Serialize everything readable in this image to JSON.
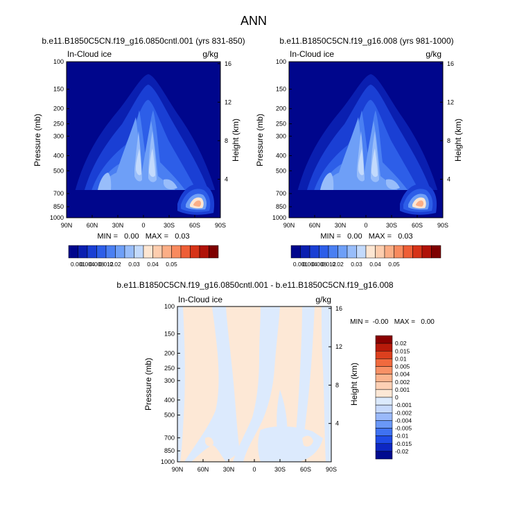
{
  "main_title": "ANN",
  "variable": "In-Cloud ice",
  "units": "g/kg",
  "colors": {
    "abs_palette": [
      "#00068c",
      "#0a1fb0",
      "#1a3fd4",
      "#2d5ee8",
      "#4a7ff2",
      "#6e9ff7",
      "#98bdfa",
      "#c3dafc",
      "#fde6d2",
      "#fdcdae",
      "#fbae86",
      "#f88a5e",
      "#ee5e36",
      "#d63318",
      "#b01208",
      "#7e0000"
    ],
    "diff_palette": [
      "#000a8f",
      "#0d27c2",
      "#1f4be6",
      "#3f72f2",
      "#6a98f7",
      "#9ab9fa",
      "#c7d9fc",
      "#dceafd",
      "#fde8d6",
      "#fdd0b4",
      "#fbb48e",
      "#f89166",
      "#f06a3e",
      "#dc401e",
      "#b81a0a",
      "#8a0000"
    ]
  },
  "chart_data": [
    {
      "type": "contour",
      "title": "b.e11.B1850C5CN.f19_g16.0850cntl.001 (yrs 831-850)",
      "ylabel": "Pressure (mb)",
      "y2label": "Height (km)",
      "xticks": [
        "90N",
        "60N",
        "30N",
        "0",
        "30S",
        "60S",
        "90S"
      ],
      "yticks": [
        "100",
        "150",
        "200",
        "250",
        "300",
        "400",
        "500",
        "700",
        "850",
        "1000"
      ],
      "y2ticks": [
        "16",
        "12",
        "8",
        "4"
      ],
      "min_max": "MIN =   0.00   MAX =   0.03",
      "levels": [
        "0.001",
        "0.004",
        "0.008",
        "0.012",
        "0.02",
        "0.03",
        "0.04",
        "0.05"
      ]
    },
    {
      "type": "contour",
      "title": "b.e11.B1850C5CN.f19_g16.008 (yrs 981-1000)",
      "ylabel": "Pressure (mb)",
      "y2label": "Height (km)",
      "xticks": [
        "90N",
        "60N",
        "30N",
        "0",
        "30S",
        "60S",
        "90S"
      ],
      "yticks": [
        "100",
        "150",
        "200",
        "250",
        "300",
        "400",
        "500",
        "700",
        "850",
        "1000"
      ],
      "y2ticks": [
        "16",
        "12",
        "8",
        "4"
      ],
      "min_max": "MIN =   0.00   MAX =   0.03",
      "levels": [
        "0.001",
        "0.004",
        "0.008",
        "0.012",
        "0.02",
        "0.03",
        "0.04",
        "0.05"
      ]
    },
    {
      "type": "contour",
      "title": "b.e11.B1850C5CN.f19_g16.0850cntl.001 - b.e11.B1850C5CN.f19_g16.008",
      "ylabel": "Pressure (mb)",
      "y2label": "Height (km)",
      "xticks": [
        "90N",
        "60N",
        "30N",
        "0",
        "30S",
        "60S",
        "90S"
      ],
      "yticks": [
        "100",
        "150",
        "200",
        "250",
        "300",
        "400",
        "500",
        "700",
        "850",
        "1000"
      ],
      "y2ticks": [
        "16",
        "12",
        "8",
        "4"
      ],
      "min_max": "MIN =  -0.00   MAX =   0.00",
      "levels": [
        "0.02",
        "0.015",
        "0.01",
        "0.005",
        "0.004",
        "0.002",
        "0.001",
        "0",
        "-0.001",
        "-0.002",
        "-0.004",
        "-0.005",
        "-0.01",
        "-0.015",
        "-0.02"
      ]
    }
  ]
}
